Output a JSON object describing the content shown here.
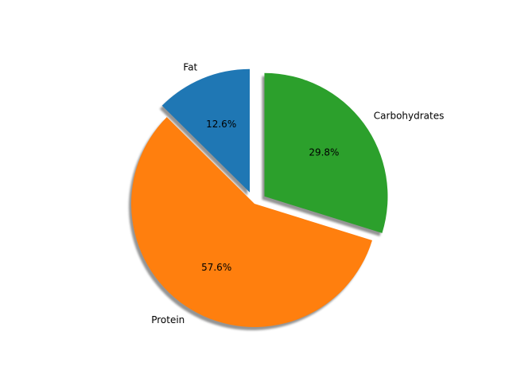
{
  "chart_data": {
    "type": "pie",
    "title": "",
    "categories": [
      "Fat",
      "Protein",
      "Carbohydrates"
    ],
    "values": [
      12.6,
      57.6,
      29.8
    ],
    "value_labels": [
      "12.6%",
      "57.6%",
      "29.8%"
    ],
    "colors": [
      "#1f77b4",
      "#ff7f0e",
      "#2ca02c"
    ],
    "exploded": [
      "Fat",
      "Carbohydrates"
    ],
    "shadow": true,
    "start_angle_deg": 90,
    "direction": "counterclockwise"
  }
}
